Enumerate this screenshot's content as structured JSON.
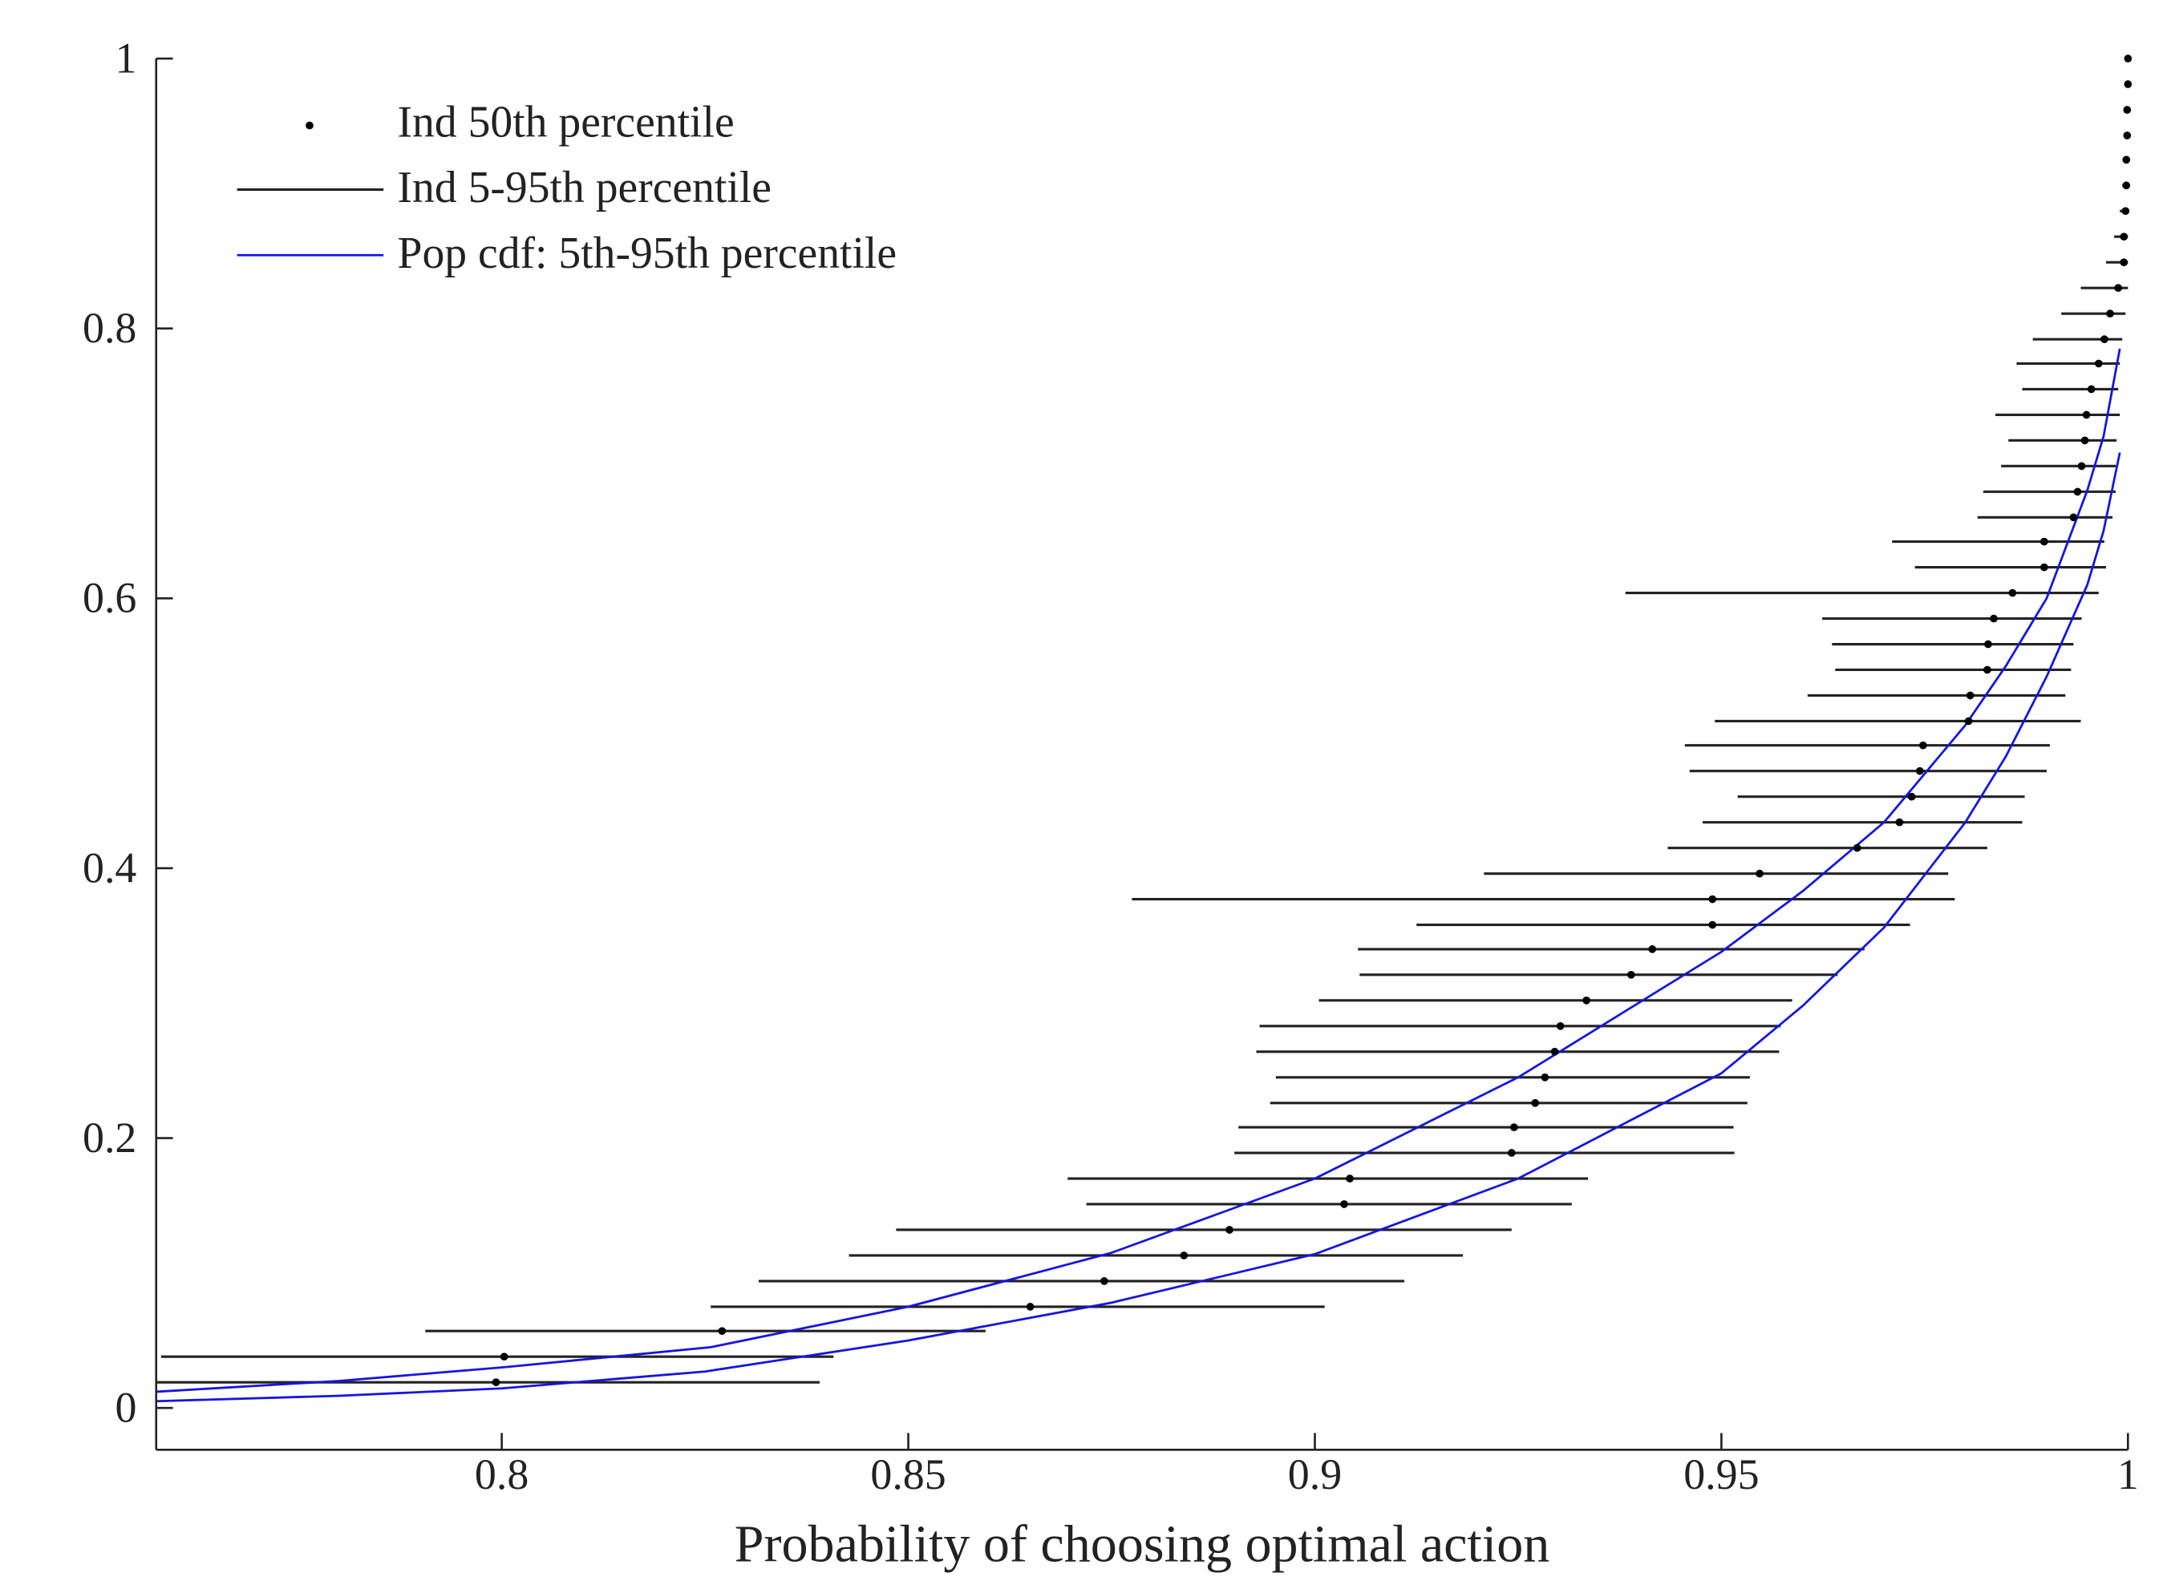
{
  "chart_data": {
    "type": "errorbar",
    "xlabel": "Probability of choosing optimal action",
    "xlim": [
      0.7575,
      1
    ],
    "xticks": [
      0.8,
      0.85,
      0.9,
      0.95,
      1
    ],
    "ylim": [
      -0.031,
      1
    ],
    "yticks": [
      0,
      0.2,
      0.4,
      0.6,
      0.8,
      1
    ],
    "legend": "upper left",
    "y": [
      0.019,
      0.038,
      0.057,
      0.075,
      0.094,
      0.113,
      0.132,
      0.151,
      0.17,
      0.189,
      0.208,
      0.226,
      0.245,
      0.264,
      0.283,
      0.302,
      0.321,
      0.34,
      0.358,
      0.377,
      0.396,
      0.415,
      0.434,
      0.453,
      0.472,
      0.491,
      0.509,
      0.528,
      0.547,
      0.566,
      0.585,
      0.604,
      0.623,
      0.642,
      0.66,
      0.679,
      0.698,
      0.717,
      0.736,
      0.755,
      0.774,
      0.792,
      0.811,
      0.83,
      0.849,
      0.868,
      0.887,
      0.906,
      0.925,
      0.943,
      0.962,
      0.981,
      1.0
    ],
    "series": [
      {
        "name": "Ind 50th percentile",
        "color": "#000000",
        "values": [
          0.7993,
          0.8003,
          0.8271,
          0.865,
          0.8741,
          0.8839,
          0.8895,
          0.9036,
          0.9043,
          0.9242,
          0.9245,
          0.9271,
          0.9283,
          0.9295,
          0.9302,
          0.9334,
          0.9389,
          0.9415,
          0.9489,
          0.9489,
          0.9547,
          0.9667,
          0.9719,
          0.9734,
          0.9744,
          0.9748,
          0.9804,
          0.9806,
          0.9827,
          0.9828,
          0.9835,
          0.9858,
          0.9897,
          0.9897,
          0.9933,
          0.9938,
          0.9943,
          0.9947,
          0.9949,
          0.9955,
          0.9964,
          0.9971,
          0.9978,
          0.9988,
          0.9995,
          0.9995,
          0.9997,
          0.9998,
          0.9998,
          0.9999,
          0.9999,
          1.0,
          1.0
        ]
      },
      {
        "name": "Ind 5-95th percentile",
        "color": "#222222",
        "low": [
          0.757,
          0.7581,
          0.7906,
          0.8257,
          0.8316,
          0.8427,
          0.8485,
          0.8719,
          0.8696,
          0.8901,
          0.8906,
          0.8945,
          0.8952,
          0.8928,
          0.8932,
          0.9005,
          0.9055,
          0.9053,
          0.9125,
          0.8775,
          0.9208,
          0.9434,
          0.9477,
          0.952,
          0.9461,
          0.9455,
          0.9492,
          0.9606,
          0.964,
          0.9636,
          0.9624,
          0.9382,
          0.9738,
          0.971,
          0.9815,
          0.9822,
          0.9844,
          0.9853,
          0.9837,
          0.987,
          0.9863,
          0.9883,
          0.9918,
          0.9942,
          0.9973,
          0.9983,
          0.999,
          0.9993,
          0.9995,
          0.9997,
          0.9997,
          0.9997,
          0.9997
        ],
        "high": [
          0.8391,
          0.8408,
          0.8595,
          0.9012,
          0.911,
          0.9182,
          0.9242,
          0.9316,
          0.9336,
          0.9516,
          0.9515,
          0.9532,
          0.9535,
          0.9571,
          0.9573,
          0.9587,
          0.9643,
          0.9676,
          0.9732,
          0.9787,
          0.9779,
          0.9827,
          0.987,
          0.9873,
          0.99,
          0.9904,
          0.9942,
          0.9923,
          0.993,
          0.9933,
          0.9943,
          0.9964,
          0.9973,
          0.9971,
          0.9981,
          0.9985,
          0.9985,
          0.9986,
          0.999,
          0.9988,
          0.999,
          0.9993,
          0.9997,
          1.0,
          1.0,
          1.0,
          1.0,
          1.0,
          1.0,
          1.0,
          1.0,
          1.0,
          1.0
        ]
      }
    ],
    "pop_cdf": {
      "name": "Pop cdf: 5th-95th percentile",
      "color": "#1515e0",
      "curves": [
        {
          "x": [
            0.7575,
            0.78,
            0.8,
            0.8257,
            0.85,
            0.875,
            0.9,
            0.925,
            0.95,
            0.96,
            0.97,
            0.98,
            0.985,
            0.99,
            0.995,
            0.997,
            0.999
          ],
          "y": [
            0.012,
            0.02,
            0.03,
            0.045,
            0.075,
            0.115,
            0.17,
            0.245,
            0.338,
            0.383,
            0.434,
            0.506,
            0.55,
            0.6,
            0.68,
            0.72,
            0.785
          ]
        },
        {
          "x": [
            0.7575,
            0.78,
            0.8,
            0.825,
            0.85,
            0.875,
            0.9,
            0.925,
            0.95,
            0.96,
            0.97,
            0.98,
            0.985,
            0.99,
            0.995,
            0.997,
            0.999
          ],
          "y": [
            0.005,
            0.009,
            0.0145,
            0.027,
            0.05,
            0.078,
            0.114,
            0.17,
            0.248,
            0.298,
            0.356,
            0.434,
            0.483,
            0.542,
            0.61,
            0.65,
            0.708
          ]
        }
      ]
    }
  }
}
